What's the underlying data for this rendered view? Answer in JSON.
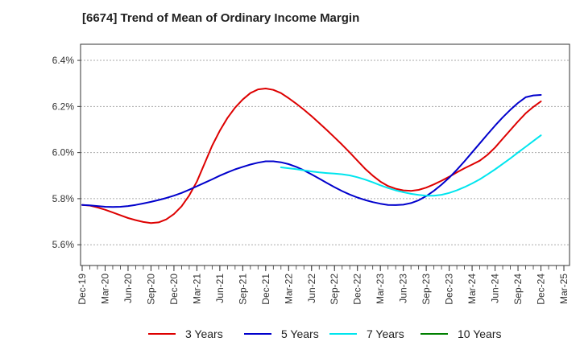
{
  "chart_data": {
    "type": "line",
    "title": "[6674]  Trend of Mean of Ordinary Income Margin",
    "xlabel": "",
    "ylabel": "",
    "x_ticks": [
      "Dec-19",
      "Mar-20",
      "Jun-20",
      "Sep-20",
      "Dec-20",
      "Mar-21",
      "Jun-21",
      "Sep-21",
      "Dec-21",
      "Mar-22",
      "Jun-22",
      "Sep-22",
      "Dec-22",
      "Mar-23",
      "Jun-23",
      "Sep-23",
      "Dec-23",
      "Mar-24",
      "Jun-24",
      "Sep-24",
      "Dec-24",
      "Mar-25"
    ],
    "y_ticks": [
      "5.6%",
      "5.8%",
      "6.0%",
      "6.2%",
      "6.4%"
    ],
    "y_tick_values": [
      5.6,
      5.8,
      6.0,
      6.2,
      6.4
    ],
    "ylim": [
      5.51,
      6.47
    ],
    "grid": "horizontal dashed",
    "legend_position": "bottom",
    "series": [
      {
        "name": "3 Years",
        "color": "#dd0000",
        "x": [
          "Dec-19",
          "Jan-20",
          "Feb-20",
          "Mar-20",
          "Apr-20",
          "May-20",
          "Jun-20",
          "Jul-20",
          "Aug-20",
          "Sep-20",
          "Oct-20",
          "Nov-20",
          "Dec-20",
          "Jan-21",
          "Feb-21",
          "Mar-21",
          "Apr-21",
          "May-21",
          "Jun-21",
          "Jul-21",
          "Aug-21",
          "Sep-21",
          "Oct-21",
          "Nov-21",
          "Dec-21",
          "Jan-22",
          "Feb-22",
          "Mar-22",
          "Apr-22",
          "May-22",
          "Jun-22",
          "Jul-22",
          "Aug-22",
          "Sep-22",
          "Oct-22",
          "Nov-22",
          "Dec-22",
          "Jan-23",
          "Feb-23",
          "Mar-23",
          "Apr-23",
          "May-23",
          "Jun-23",
          "Jul-23",
          "Aug-23",
          "Sep-23",
          "Oct-23",
          "Nov-23",
          "Dec-23",
          "Jan-24",
          "Feb-24",
          "Mar-24",
          "Apr-24",
          "May-24",
          "Jun-24",
          "Jul-24",
          "Aug-24",
          "Sep-24",
          "Oct-24",
          "Nov-24",
          "Dec-24"
        ],
        "values": [
          5.773,
          5.77,
          5.762,
          5.752,
          5.74,
          5.728,
          5.716,
          5.707,
          5.699,
          5.694,
          5.697,
          5.71,
          5.733,
          5.767,
          5.814,
          5.874,
          5.952,
          6.03,
          6.095,
          6.15,
          6.195,
          6.23,
          6.258,
          6.274,
          6.278,
          6.272,
          6.258,
          6.236,
          6.212,
          6.186,
          6.158,
          6.128,
          6.098,
          6.066,
          6.034,
          6.0,
          5.965,
          5.93,
          5.9,
          5.874,
          5.855,
          5.843,
          5.836,
          5.834,
          5.838,
          5.848,
          5.862,
          5.878,
          5.895,
          5.914,
          5.932,
          5.948,
          5.965,
          5.99,
          6.022,
          6.06,
          6.098,
          6.135,
          6.17,
          6.198,
          6.222
        ]
      },
      {
        "name": "5 Years",
        "color": "#0000cc",
        "x": [
          "Dec-19",
          "Jan-20",
          "Feb-20",
          "Mar-20",
          "Apr-20",
          "May-20",
          "Jun-20",
          "Jul-20",
          "Aug-20",
          "Sep-20",
          "Oct-20",
          "Nov-20",
          "Dec-20",
          "Jan-21",
          "Feb-21",
          "Mar-21",
          "Apr-21",
          "May-21",
          "Jun-21",
          "Jul-21",
          "Aug-21",
          "Sep-21",
          "Oct-21",
          "Nov-21",
          "Dec-21",
          "Jan-22",
          "Feb-22",
          "Mar-22",
          "Apr-22",
          "May-22",
          "Jun-22",
          "Jul-22",
          "Aug-22",
          "Sep-22",
          "Oct-22",
          "Nov-22",
          "Dec-22",
          "Jan-23",
          "Feb-23",
          "Mar-23",
          "Apr-23",
          "May-23",
          "Jun-23",
          "Jul-23",
          "Aug-23",
          "Sep-23",
          "Oct-23",
          "Nov-23",
          "Dec-23",
          "Jan-24",
          "Feb-24",
          "Mar-24",
          "Apr-24",
          "May-24",
          "Jun-24",
          "Jul-24",
          "Aug-24",
          "Sep-24",
          "Oct-24",
          "Nov-24",
          "Dec-24"
        ],
        "values": [
          5.773,
          5.771,
          5.768,
          5.765,
          5.764,
          5.765,
          5.768,
          5.773,
          5.779,
          5.786,
          5.794,
          5.803,
          5.813,
          5.825,
          5.839,
          5.854,
          5.869,
          5.884,
          5.9,
          5.914,
          5.927,
          5.938,
          5.948,
          5.956,
          5.962,
          5.962,
          5.958,
          5.95,
          5.938,
          5.923,
          5.905,
          5.887,
          5.868,
          5.85,
          5.833,
          5.818,
          5.805,
          5.794,
          5.785,
          5.778,
          5.773,
          5.772,
          5.774,
          5.781,
          5.793,
          5.811,
          5.834,
          5.861,
          5.891,
          5.925,
          5.962,
          6.001,
          6.04,
          6.079,
          6.117,
          6.153,
          6.186,
          6.215,
          6.24,
          6.248,
          6.25
        ]
      },
      {
        "name": "7 Years",
        "color": "#00e5ee",
        "x": [
          "Feb-22",
          "Mar-22",
          "Apr-22",
          "May-22",
          "Jun-22",
          "Jul-22",
          "Aug-22",
          "Sep-22",
          "Oct-22",
          "Nov-22",
          "Dec-22",
          "Jan-23",
          "Feb-23",
          "Mar-23",
          "Apr-23",
          "May-23",
          "Jun-23",
          "Jul-23",
          "Aug-23",
          "Sep-23",
          "Oct-23",
          "Nov-23",
          "Dec-23",
          "Jan-24",
          "Feb-24",
          "Mar-24",
          "Apr-24",
          "May-24",
          "Jun-24",
          "Jul-24",
          "Aug-24",
          "Sep-24",
          "Oct-24",
          "Nov-24",
          "Dec-24"
        ],
        "values": [
          5.936,
          5.932,
          5.928,
          5.923,
          5.918,
          5.914,
          5.911,
          5.909,
          5.906,
          5.901,
          5.893,
          5.883,
          5.871,
          5.858,
          5.846,
          5.836,
          5.828,
          5.821,
          5.816,
          5.813,
          5.813,
          5.817,
          5.825,
          5.836,
          5.85,
          5.866,
          5.884,
          5.905,
          5.927,
          5.951,
          5.975,
          6.0,
          6.025,
          6.05,
          6.075
        ]
      },
      {
        "name": "10 Years",
        "color": "#008000",
        "x": [],
        "values": []
      }
    ]
  }
}
